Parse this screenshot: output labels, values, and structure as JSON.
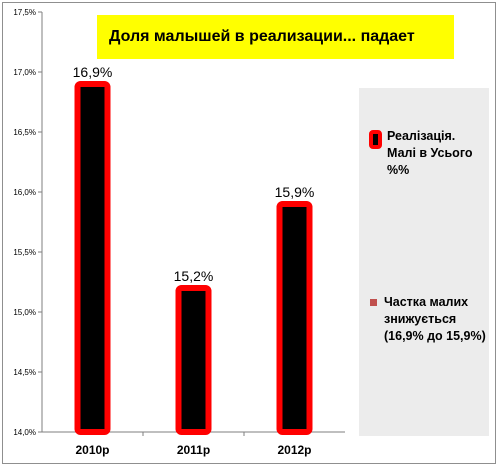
{
  "chart_data": {
    "type": "bar",
    "title": "Доля малышей  в реализации... падает",
    "categories": [
      "2010р",
      "2011р",
      "2012р"
    ],
    "series": [
      {
        "name": "Реалізація. Малі в Усього %%",
        "values": [
          16.9,
          15.2,
          15.9
        ]
      }
    ],
    "data_labels": [
      "16,9%",
      "15,2%",
      "15,9%"
    ],
    "yticks": [
      "14,0%",
      "14,5%",
      "15,0%",
      "15,5%",
      "16,0%",
      "16,5%",
      "17,0%",
      "17,5%"
    ],
    "ylim": [
      14.0,
      17.5
    ],
    "grid": false,
    "legend_position": "right",
    "legend": [
      {
        "label": "Реалізація. Малі в Усього %%",
        "color": "#ff0000",
        "fill": "#000000"
      },
      {
        "label": "Частка малих знижується (16,9% до 15,9%)",
        "color": "#c0504d"
      }
    ],
    "colors": {
      "bar_fill": "#000000",
      "bar_border": "#ff0000",
      "title_background": "#ffff00"
    }
  }
}
